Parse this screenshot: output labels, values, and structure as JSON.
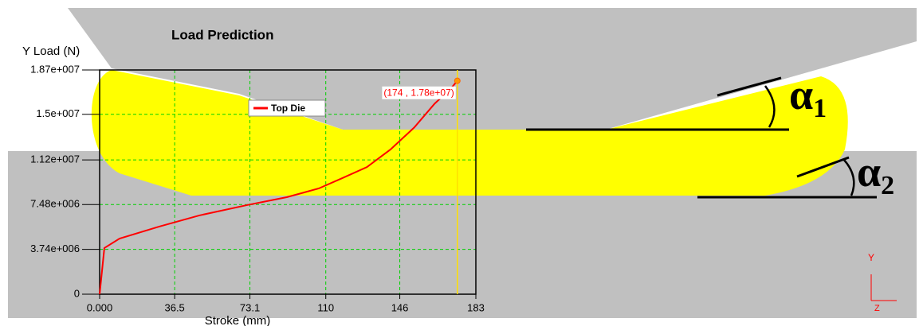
{
  "chart_data": {
    "type": "line",
    "title": "Load Prediction",
    "y_label": "Y Load (N)",
    "x_label": "Stroke (mm)",
    "x": [
      0,
      2.3,
      9.7,
      29,
      48.5,
      71.7,
      91,
      106.6,
      118,
      130,
      141.5,
      153,
      163,
      170.6,
      174
    ],
    "series": [
      {
        "name": "Top Die",
        "color": "#ff0000",
        "values": [
          0,
          3850000,
          4640000,
          5640000,
          6570000,
          7430000,
          8090000,
          8820000,
          9680000,
          10600000,
          12070000,
          13900000,
          15900000,
          17100000,
          17800000
        ]
      }
    ],
    "xlim": [
      0,
      183
    ],
    "ylim": [
      0,
      18700000
    ],
    "xticks": [
      {
        "value": 0,
        "label": "0.000"
      },
      36.5,
      73.1,
      110,
      146,
      183
    ],
    "yticks": [
      0,
      {
        "value": 3740000,
        "label": "3.74e+006"
      },
      {
        "value": 7480000,
        "label": "7.48e+006"
      },
      {
        "value": 11200000,
        "label": "1.12e+007"
      },
      {
        "value": 15000000,
        "label": "1.5e+007"
      },
      {
        "value": 18700000,
        "label": "1.87e+007"
      }
    ],
    "grid": true,
    "cursor": {
      "x": 174,
      "y": 17800000,
      "label": "(174 , 1.78e+07)",
      "color": "#ffe000"
    },
    "angle_labels": [
      {
        "symbol": "α",
        "subscript": "1"
      },
      {
        "symbol": "α",
        "subscript": "2"
      }
    ],
    "axes_triad": [
      "Y",
      "Z"
    ]
  }
}
